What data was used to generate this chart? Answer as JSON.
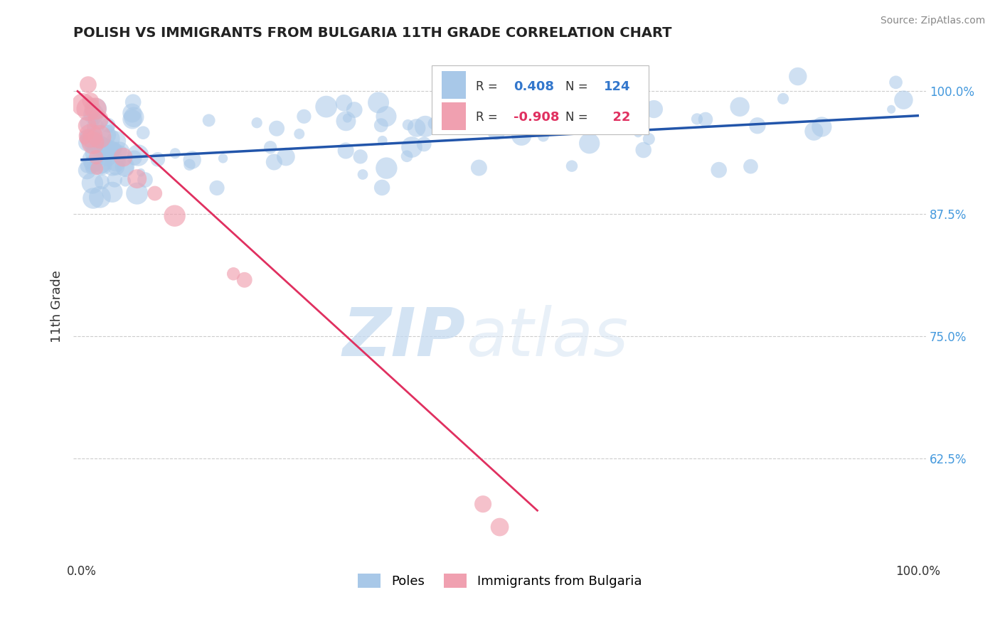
{
  "title": "POLISH VS IMMIGRANTS FROM BULGARIA 11TH GRADE CORRELATION CHART",
  "source_text": "Source: ZipAtlas.com",
  "ylabel": "11th Grade",
  "blue_R": 0.408,
  "blue_N": 124,
  "pink_R": -0.908,
  "pink_N": 22,
  "blue_color": "#a8c8e8",
  "blue_line_color": "#2255aa",
  "pink_color": "#f0a0b0",
  "pink_line_color": "#e03060",
  "legend_blue_label": "Poles",
  "legend_pink_label": "Immigrants from Bulgaria",
  "watermark_zip": "ZIP",
  "watermark_atlas": "atlas",
  "background_color": "#ffffff",
  "grid_color": "#cccccc",
  "seed": 42,
  "ylim_min": 0.52,
  "ylim_max": 1.04,
  "xlim_min": -0.01,
  "xlim_max": 1.01
}
